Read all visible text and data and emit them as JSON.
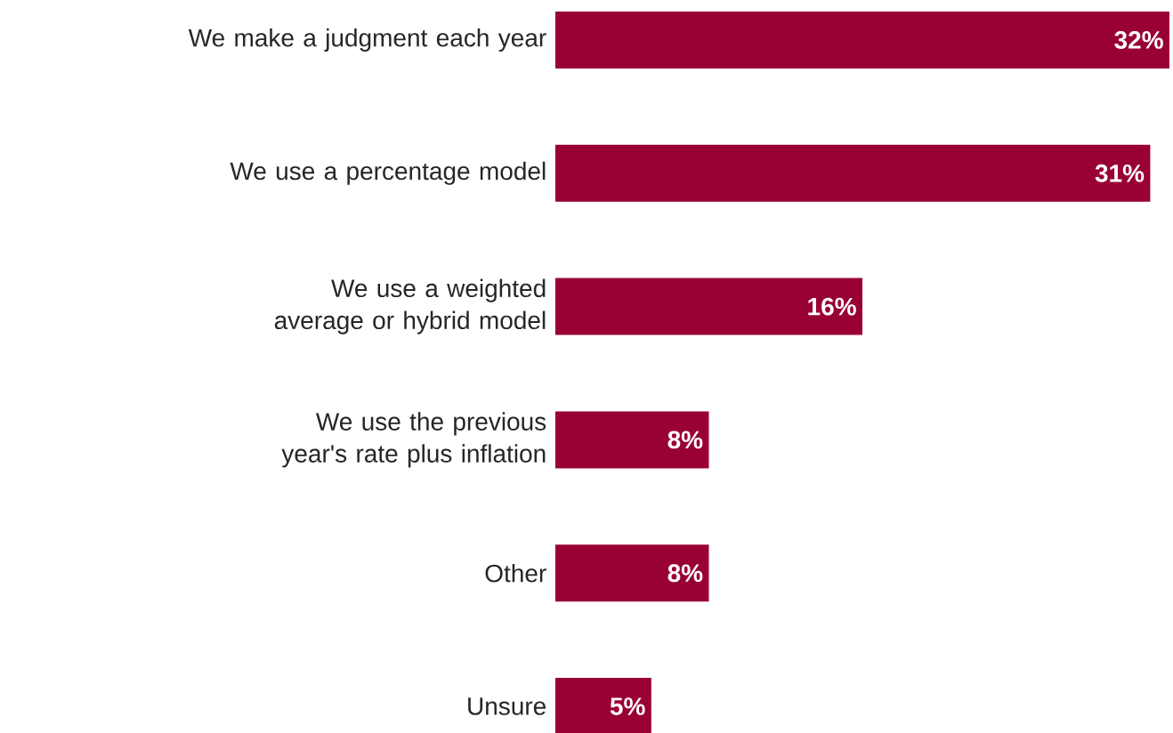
{
  "chart_data": {
    "type": "bar",
    "orientation": "horizontal",
    "categories": [
      "We make a judgment each year",
      "We use a percentage model",
      "We use a weighted average or hybrid model",
      "We use the previous year's rate plus inflation",
      "Other",
      "Unsure"
    ],
    "values": [
      32,
      31,
      16,
      8,
      8,
      5
    ],
    "value_labels": [
      "32%",
      "31%",
      "16%",
      "8%",
      "8%",
      "5%"
    ],
    "color": "#990033",
    "xlim": [
      0,
      32
    ]
  }
}
